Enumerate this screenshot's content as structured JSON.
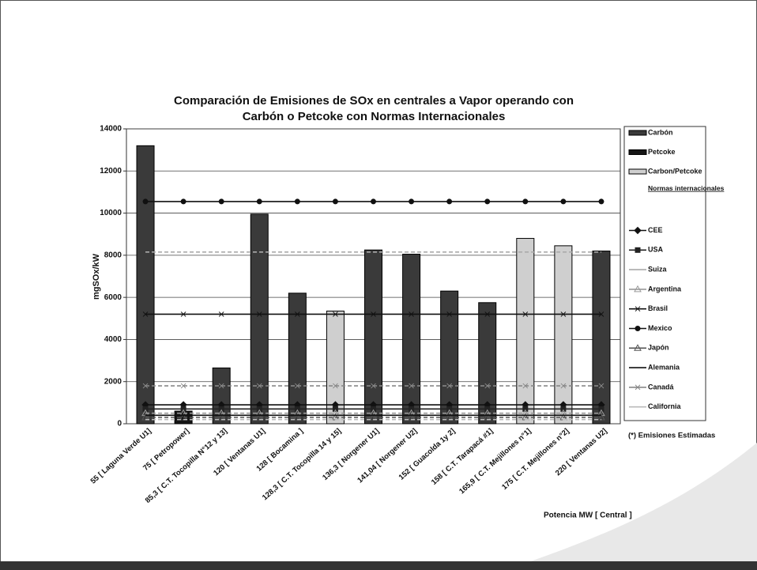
{
  "chart_data": {
    "type": "bar",
    "title": [
      "Comparación de Emisiones de SOx en centrales a Vapor operando con",
      "Carbón o Petcoke con Normas Internacionales"
    ],
    "y_label": "mgSOx/kW",
    "x_label": "Potencia MW [ Central ]",
    "categories": [
      "55 [ Laguna Verde U1]",
      "75 [ Petropower]",
      "85,3 [ C.T. Tocopilla N°12 y 13]",
      "120 [ Ventanas U1]",
      "128 [ Bocamina ]",
      "128,3 [ C.T. Tocopilla 14 y 15]",
      "136,3 [ Norgener U1]",
      "141,04 [ Norgener U2]",
      "152 [ Guacolda 1y 2]",
      "158 [ C.T. Tarapacá #1]",
      "165,9 [ C.T. Mejillones n°1]",
      "175 [ C.T. Mejillones n°2]",
      "220 [ Ventanas U2]"
    ],
    "ylim": [
      0,
      14000
    ],
    "yticks": [
      0,
      2000,
      4000,
      6000,
      8000,
      10000,
      12000,
      14000
    ],
    "grid": true,
    "legend_heading": "Normas internacionales",
    "note": "(*) Emisiones Estimadas",
    "series": [
      {
        "name": "Carbón",
        "kind": "bar",
        "color": "#3a3a3a",
        "values": [
          13200,
          null,
          2650,
          9950,
          6200,
          null,
          8250,
          8050,
          6300,
          5750,
          null,
          null,
          8200
        ]
      },
      {
        "name": "Petcoke",
        "kind": "bar",
        "color": "#151515",
        "values": [
          null,
          600,
          null,
          null,
          null,
          null,
          null,
          null,
          null,
          null,
          null,
          null,
          null
        ]
      },
      {
        "name": "Carbon/Petcoke",
        "kind": "bar",
        "color": "#cfcfcf",
        "values": [
          null,
          null,
          null,
          null,
          null,
          5350,
          null,
          null,
          null,
          null,
          8800,
          8450,
          null
        ]
      },
      {
        "name": "CEE",
        "kind": "line",
        "marker": "diamond",
        "color": "#111",
        "values": [
          900,
          900,
          900,
          900,
          900,
          900,
          900,
          900,
          900,
          900,
          900,
          900,
          900
        ]
      },
      {
        "name": "USA",
        "kind": "line",
        "marker": "square",
        "color": "#222",
        "values": [
          700,
          700,
          700,
          700,
          700,
          700,
          700,
          700,
          700,
          700,
          700,
          700,
          700
        ]
      },
      {
        "name": "Suiza",
        "kind": "line",
        "marker": "none",
        "color": "#aaa",
        "values": [
          8150,
          8150,
          8150,
          8150,
          8150,
          8150,
          8150,
          8150,
          8150,
          8150,
          8150,
          8150,
          8150
        ]
      },
      {
        "name": "Argentina",
        "kind": "line",
        "marker": "triangle",
        "color": "#999",
        "values": [
          500,
          500,
          500,
          500,
          500,
          500,
          500,
          500,
          500,
          500,
          500,
          500,
          500
        ]
      },
      {
        "name": "Brasil",
        "kind": "line",
        "marker": "x",
        "color": "#111",
        "values": [
          5200,
          5200,
          5200,
          5200,
          5200,
          5200,
          5200,
          5200,
          5200,
          5200,
          5200,
          5200,
          5200
        ]
      },
      {
        "name": "Mexico",
        "kind": "line",
        "marker": "circle",
        "color": "#111",
        "values": [
          10550,
          10550,
          10550,
          10550,
          10550,
          10550,
          10550,
          10550,
          10550,
          10550,
          10550,
          10550,
          10550
        ]
      },
      {
        "name": "Japón",
        "kind": "line",
        "marker": "triangle",
        "color": "#555",
        "values": [
          300,
          300,
          300,
          300,
          300,
          300,
          300,
          300,
          300,
          300,
          300,
          300,
          300
        ]
      },
      {
        "name": "Alemania",
        "kind": "line",
        "marker": "none",
        "color": "#111",
        "values": [
          400,
          400,
          400,
          400,
          400,
          400,
          400,
          400,
          400,
          400,
          400,
          400,
          400
        ]
      },
      {
        "name": "Canadá",
        "kind": "line",
        "marker": "x",
        "color": "#888",
        "values": [
          1800,
          1800,
          1800,
          1800,
          1800,
          1800,
          1800,
          1800,
          1800,
          1800,
          1800,
          1800,
          1800
        ]
      },
      {
        "name": "California",
        "kind": "line",
        "marker": "none",
        "color": "#bbb",
        "values": [
          200,
          200,
          200,
          200,
          200,
          200,
          200,
          200,
          200,
          200,
          200,
          200,
          200
        ]
      }
    ]
  }
}
